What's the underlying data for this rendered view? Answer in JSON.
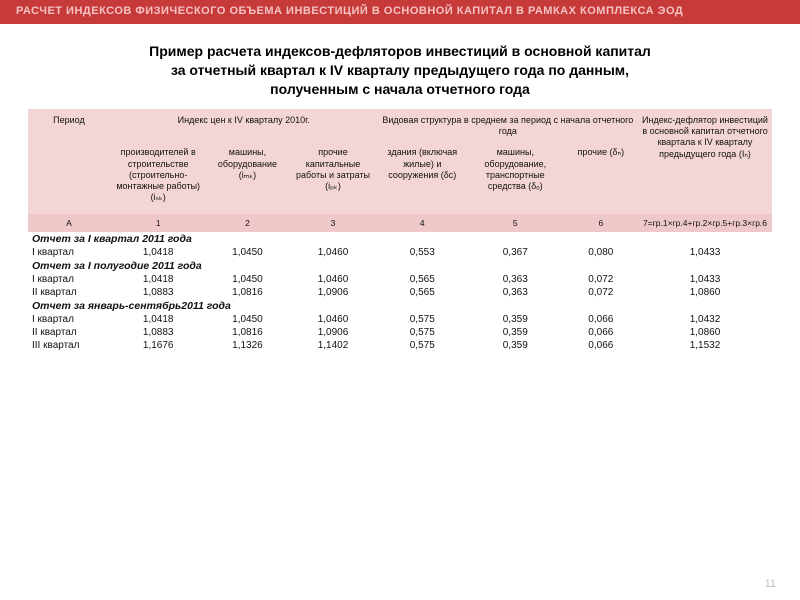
{
  "banner": "РАСЧЕТ ИНДЕКСОВ ФИЗИЧЕСКОГО ОБЪЕМА ИНВЕСТИЦИЙ В ОСНОВНОЙ КАПИТАЛ В РАМКАХ КОМПЛЕКСА ЭОД",
  "title_l1": "Пример расчета индексов-дефляторов инвестиций в основной капитал",
  "title_l2": "за отчетный квартал к IV кварталу предыдущего года по данным,",
  "title_l3": "полученным с начала отчетного года",
  "colors": {
    "banner_bg": "#c73a3a",
    "banner_text": "#f5c2c2",
    "header_bg": "#f4d5d5",
    "header_row3_bg": "#efc9c9",
    "page_bg": "#ffffff",
    "pagenum": "#bfbfbf"
  },
  "typography": {
    "banner_fontsize": 11,
    "title_fontsize": 14,
    "header_fontsize": 9,
    "body_fontsize": 10
  },
  "table": {
    "h1": {
      "c0": "Период",
      "c1": "Индекс цен к IV кварталу 2010г.",
      "c2": "Видовая структура в среднем за период с начала отчетного года",
      "c3": "Индекс-дефлятор инвестиций в основной капитал отчетного квартала к IV кварталу предыдущего года (Iₙ)"
    },
    "h2": {
      "c0": "производителей в строительстве (строительно-монтажные работы) (iₛₖ)",
      "c1": "машины, оборудование (iₘₖ)",
      "c2": "прочие капитальные работы и затраты (iₚₖ)",
      "c3": "здания (включая жилые) и сооружения (δc)",
      "c4": "машины, оборудование, транспортные средства (δₒ)",
      "c5": "прочие (δₙ)"
    },
    "h3": {
      "c0": "А",
      "c1": "1",
      "c2": "2",
      "c3": "3",
      "c4": "4",
      "c5": "5",
      "c6": "6",
      "c7": "7=гр.1×гр.4+гр.2×гр.5+гр.3×гр.6"
    },
    "sections": [
      {
        "label": "Отчет за I квартал 2011 года",
        "rows": [
          {
            "period": "I квартал",
            "c1": "1,0418",
            "c2": "1,0450",
            "c3": "1,0460",
            "c4": "0,553",
            "c5": "0,367",
            "c6": "0,080",
            "c7": "1,0433"
          }
        ]
      },
      {
        "label": "Отчет за I полугодие 2011 года",
        "rows": [
          {
            "period": "I квартал",
            "c1": "1,0418",
            "c2": "1,0450",
            "c3": "1,0460",
            "c4": "0,565",
            "c5": "0,363",
            "c6": "0,072",
            "c7": "1,0433"
          },
          {
            "period": "II квартал",
            "c1": "1,0883",
            "c2": "1,0816",
            "c3": "1,0906",
            "c4": "0,565",
            "c5": "0,363",
            "c6": "0,072",
            "c7": "1,0860"
          }
        ]
      },
      {
        "label": "Отчет за январь-сентябрь2011 года",
        "rows": [
          {
            "period": "I квартал",
            "c1": "1,0418",
            "c2": "1,0450",
            "c3": "1,0460",
            "c4": "0,575",
            "c5": "0,359",
            "c6": "0,066",
            "c7": "1,0432"
          },
          {
            "period": "II квартал",
            "c1": "1,0883",
            "c2": "1,0816",
            "c3": "1,0906",
            "c4": "0,575",
            "c5": "0,359",
            "c6": "0,066",
            "c7": "1,0860"
          },
          {
            "period": "III квартал",
            "c1": "1,1676",
            "c2": "1,1326",
            "c3": "1,1402",
            "c4": "0,575",
            "c5": "0,359",
            "c6": "0,066",
            "c7": "1,1532"
          }
        ]
      }
    ]
  },
  "page_number": "11"
}
